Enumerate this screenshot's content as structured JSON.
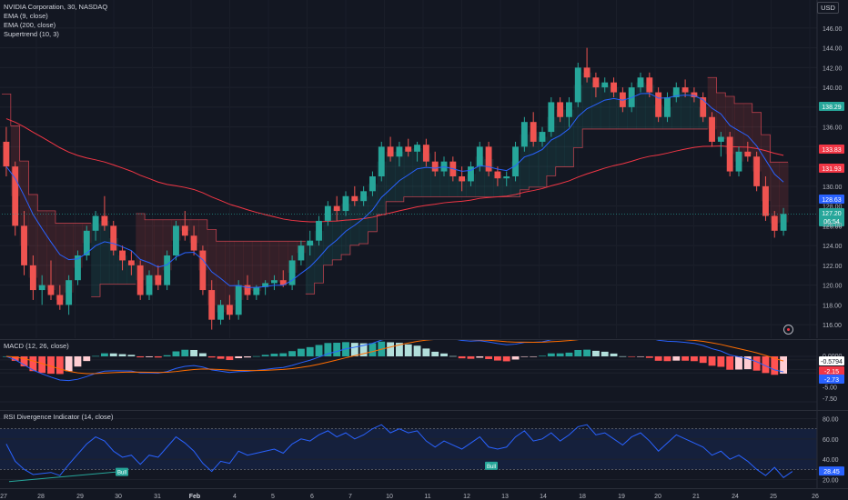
{
  "legend": {
    "symbol": "NVIDIA Corporation, 30, NASDAQ",
    "ema9": "EMA (9, close)",
    "ema200": "EMA (200, close)",
    "supertrend": "Supertrend (10, 3)"
  },
  "macd_legend": "MACD (12, 26, close)",
  "rsi_legend": "RSI Divergence Indicator (14, close)",
  "currency_button": "USD",
  "price_scale": [
    "146.00",
    "144.00",
    "142.00",
    "140.00",
    "138.00",
    "136.00",
    "134.00",
    "132.00",
    "130.00",
    "128.00",
    "126.00",
    "124.00",
    "122.00",
    "120.00",
    "118.00",
    "116.00"
  ],
  "price_tags": {
    "ema9_value": "138.29",
    "supertrend_value": "133.83",
    "line_value": "131.93",
    "ema_value_blue": "128.63",
    "last_price": "127.20",
    "countdown": "06:54",
    "below": "126.00"
  },
  "colors": {
    "up": "#26a69a",
    "down": "#ef5350",
    "ema9": "#2962ff",
    "ema200": "#f23645",
    "tag_green": "#26a69a",
    "tag_red": "#f23645",
    "tag_blue": "#2962ff",
    "rsi_line": "#2962ff"
  },
  "macd_scale": [
    "0.0000",
    "-0.5794",
    "-2.15",
    "-2.73",
    "-5.00",
    "-7.50"
  ],
  "rsi_scale": [
    "80.00",
    "60.00",
    "40.00",
    "28.45",
    "20.00"
  ],
  "rsi_badges": [
    "Bull",
    "Bull"
  ],
  "time_axis": [
    "27",
    "28",
    "29",
    "30",
    "31",
    "Feb",
    "4",
    "5",
    "6",
    "7",
    "10",
    "11",
    "12",
    "13",
    "14",
    "18",
    "19",
    "20",
    "21",
    "24",
    "25",
    "26"
  ],
  "chart_data": {
    "type": "candlestick",
    "title": "NVIDIA Corporation, 30, NASDAQ",
    "ylim": [
      115,
      147
    ],
    "candles": [
      {
        "o": 134.5,
        "h": 136.0,
        "l": 131.0,
        "c": 132.0
      },
      {
        "o": 132.0,
        "h": 132.5,
        "l": 125.0,
        "c": 126.0
      },
      {
        "o": 126.0,
        "h": 127.5,
        "l": 121.0,
        "c": 122.0
      },
      {
        "o": 122.0,
        "h": 123.0,
        "l": 118.5,
        "c": 119.5
      },
      {
        "o": 119.5,
        "h": 121.0,
        "l": 118.0,
        "c": 120.0
      },
      {
        "o": 120.0,
        "h": 122.5,
        "l": 118.5,
        "c": 119.0
      },
      {
        "o": 119.0,
        "h": 120.0,
        "l": 117.5,
        "c": 118.0
      },
      {
        "o": 118.0,
        "h": 121.0,
        "l": 117.0,
        "c": 120.5
      },
      {
        "o": 120.5,
        "h": 123.5,
        "l": 120.0,
        "c": 123.0
      },
      {
        "o": 123.0,
        "h": 126.0,
        "l": 122.5,
        "c": 125.5
      },
      {
        "o": 125.5,
        "h": 127.5,
        "l": 124.5,
        "c": 127.0
      },
      {
        "o": 127.0,
        "h": 129.0,
        "l": 125.5,
        "c": 126.0
      },
      {
        "o": 126.0,
        "h": 126.5,
        "l": 123.0,
        "c": 123.5
      },
      {
        "o": 123.5,
        "h": 124.0,
        "l": 121.5,
        "c": 122.5
      },
      {
        "o": 122.5,
        "h": 123.5,
        "l": 121.0,
        "c": 122.0
      },
      {
        "o": 122.0,
        "h": 122.5,
        "l": 118.5,
        "c": 119.0
      },
      {
        "o": 119.0,
        "h": 121.5,
        "l": 118.5,
        "c": 121.0
      },
      {
        "o": 121.0,
        "h": 122.0,
        "l": 119.5,
        "c": 120.0
      },
      {
        "o": 120.0,
        "h": 123.5,
        "l": 119.5,
        "c": 123.0
      },
      {
        "o": 123.0,
        "h": 126.5,
        "l": 122.5,
        "c": 126.0
      },
      {
        "o": 126.0,
        "h": 127.5,
        "l": 124.5,
        "c": 125.0
      },
      {
        "o": 125.0,
        "h": 126.0,
        "l": 123.0,
        "c": 123.5
      },
      {
        "o": 123.5,
        "h": 124.0,
        "l": 119.0,
        "c": 119.5
      },
      {
        "o": 119.5,
        "h": 120.5,
        "l": 115.5,
        "c": 116.5
      },
      {
        "o": 116.5,
        "h": 118.5,
        "l": 116.0,
        "c": 118.0
      },
      {
        "o": 118.0,
        "h": 119.0,
        "l": 116.5,
        "c": 117.0
      },
      {
        "o": 117.0,
        "h": 120.5,
        "l": 116.5,
        "c": 120.0
      },
      {
        "o": 120.0,
        "h": 121.0,
        "l": 118.5,
        "c": 119.0
      },
      {
        "o": 119.0,
        "h": 120.0,
        "l": 118.5,
        "c": 119.8
      },
      {
        "o": 119.8,
        "h": 120.5,
        "l": 119.0,
        "c": 120.2
      },
      {
        "o": 120.2,
        "h": 121.0,
        "l": 119.5,
        "c": 120.5
      },
      {
        "o": 120.5,
        "h": 121.5,
        "l": 119.8,
        "c": 120.0
      },
      {
        "o": 120.0,
        "h": 123.0,
        "l": 119.5,
        "c": 122.5
      },
      {
        "o": 122.5,
        "h": 124.5,
        "l": 122.0,
        "c": 124.0
      },
      {
        "o": 124.0,
        "h": 125.5,
        "l": 123.0,
        "c": 124.5
      },
      {
        "o": 124.5,
        "h": 127.0,
        "l": 124.0,
        "c": 126.5
      },
      {
        "o": 126.5,
        "h": 128.5,
        "l": 126.0,
        "c": 128.0
      },
      {
        "o": 128.0,
        "h": 129.0,
        "l": 126.5,
        "c": 127.5
      },
      {
        "o": 127.5,
        "h": 129.5,
        "l": 127.0,
        "c": 129.0
      },
      {
        "o": 129.0,
        "h": 130.0,
        "l": 128.0,
        "c": 128.5
      },
      {
        "o": 128.5,
        "h": 130.0,
        "l": 128.0,
        "c": 129.5
      },
      {
        "o": 129.5,
        "h": 131.5,
        "l": 129.0,
        "c": 131.0
      },
      {
        "o": 131.0,
        "h": 134.5,
        "l": 130.5,
        "c": 134.0
      },
      {
        "o": 134.0,
        "h": 135.0,
        "l": 132.5,
        "c": 133.0
      },
      {
        "o": 133.0,
        "h": 134.5,
        "l": 132.0,
        "c": 134.0
      },
      {
        "o": 134.0,
        "h": 134.8,
        "l": 133.0,
        "c": 133.5
      },
      {
        "o": 133.5,
        "h": 134.5,
        "l": 132.5,
        "c": 134.2
      },
      {
        "o": 134.2,
        "h": 134.8,
        "l": 132.0,
        "c": 132.5
      },
      {
        "o": 132.5,
        "h": 133.5,
        "l": 131.0,
        "c": 131.5
      },
      {
        "o": 131.5,
        "h": 133.0,
        "l": 131.0,
        "c": 132.5
      },
      {
        "o": 132.5,
        "h": 133.0,
        "l": 130.5,
        "c": 131.0
      },
      {
        "o": 131.0,
        "h": 132.0,
        "l": 129.5,
        "c": 130.5
      },
      {
        "o": 130.5,
        "h": 132.5,
        "l": 130.0,
        "c": 132.0
      },
      {
        "o": 132.0,
        "h": 134.5,
        "l": 131.5,
        "c": 134.0
      },
      {
        "o": 134.0,
        "h": 134.5,
        "l": 131.0,
        "c": 131.5
      },
      {
        "o": 131.5,
        "h": 132.0,
        "l": 130.0,
        "c": 130.8
      },
      {
        "o": 130.8,
        "h": 131.5,
        "l": 130.0,
        "c": 131.0
      },
      {
        "o": 131.0,
        "h": 134.5,
        "l": 130.5,
        "c": 134.0
      },
      {
        "o": 134.0,
        "h": 137.0,
        "l": 133.5,
        "c": 136.5
      },
      {
        "o": 136.5,
        "h": 137.5,
        "l": 134.0,
        "c": 134.5
      },
      {
        "o": 134.5,
        "h": 136.0,
        "l": 134.0,
        "c": 135.5
      },
      {
        "o": 135.5,
        "h": 139.0,
        "l": 135.0,
        "c": 138.5
      },
      {
        "o": 138.5,
        "h": 139.0,
        "l": 136.5,
        "c": 137.0
      },
      {
        "o": 137.0,
        "h": 139.0,
        "l": 136.0,
        "c": 138.5
      },
      {
        "o": 138.5,
        "h": 142.5,
        "l": 138.0,
        "c": 142.0
      },
      {
        "o": 142.0,
        "h": 144.0,
        "l": 140.5,
        "c": 141.0
      },
      {
        "o": 141.0,
        "h": 141.5,
        "l": 139.0,
        "c": 140.0
      },
      {
        "o": 140.0,
        "h": 141.0,
        "l": 139.5,
        "c": 140.5
      },
      {
        "o": 140.5,
        "h": 141.0,
        "l": 139.0,
        "c": 139.5
      },
      {
        "o": 139.5,
        "h": 140.0,
        "l": 137.5,
        "c": 138.0
      },
      {
        "o": 138.0,
        "h": 140.5,
        "l": 137.5,
        "c": 140.0
      },
      {
        "o": 140.0,
        "h": 141.5,
        "l": 139.5,
        "c": 141.0
      },
      {
        "o": 141.0,
        "h": 141.5,
        "l": 139.0,
        "c": 139.5
      },
      {
        "o": 139.5,
        "h": 140.0,
        "l": 136.5,
        "c": 137.0
      },
      {
        "o": 137.0,
        "h": 139.5,
        "l": 136.5,
        "c": 139.0
      },
      {
        "o": 139.0,
        "h": 140.5,
        "l": 138.5,
        "c": 140.0
      },
      {
        "o": 140.0,
        "h": 140.8,
        "l": 139.0,
        "c": 139.5
      },
      {
        "o": 139.5,
        "h": 140.0,
        "l": 138.5,
        "c": 139.0
      },
      {
        "o": 139.0,
        "h": 139.5,
        "l": 136.5,
        "c": 137.0
      },
      {
        "o": 137.0,
        "h": 137.5,
        "l": 134.0,
        "c": 134.5
      },
      {
        "o": 134.5,
        "h": 135.5,
        "l": 133.0,
        "c": 135.0
      },
      {
        "o": 135.0,
        "h": 135.5,
        "l": 131.0,
        "c": 131.5
      },
      {
        "o": 131.5,
        "h": 134.0,
        "l": 131.0,
        "c": 133.5
      },
      {
        "o": 133.5,
        "h": 134.5,
        "l": 132.5,
        "c": 133.0
      },
      {
        "o": 133.0,
        "h": 133.5,
        "l": 129.5,
        "c": 130.0
      },
      {
        "o": 130.0,
        "h": 131.0,
        "l": 126.5,
        "c": 127.0
      },
      {
        "o": 127.0,
        "h": 127.5,
        "l": 124.8,
        "c": 125.5
      },
      {
        "o": 125.5,
        "h": 127.8,
        "l": 125.0,
        "c": 127.2
      }
    ],
    "rsi": [
      55,
      38,
      30,
      25,
      26,
      27,
      24,
      35,
      45,
      55,
      62,
      58,
      48,
      42,
      44,
      35,
      44,
      42,
      52,
      62,
      56,
      48,
      36,
      28,
      38,
      36,
      48,
      44,
      46,
      48,
      50,
      46,
      55,
      60,
      58,
      64,
      68,
      62,
      66,
      60,
      64,
      70,
      74,
      66,
      70,
      66,
      68,
      58,
      52,
      58,
      54,
      50,
      56,
      62,
      52,
      50,
      52,
      62,
      68,
      58,
      60,
      66,
      58,
      64,
      72,
      74,
      64,
      66,
      60,
      54,
      62,
      66,
      58,
      48,
      56,
      64,
      60,
      56,
      52,
      44,
      48,
      40,
      44,
      38,
      30,
      24,
      32,
      22,
      28
    ]
  }
}
